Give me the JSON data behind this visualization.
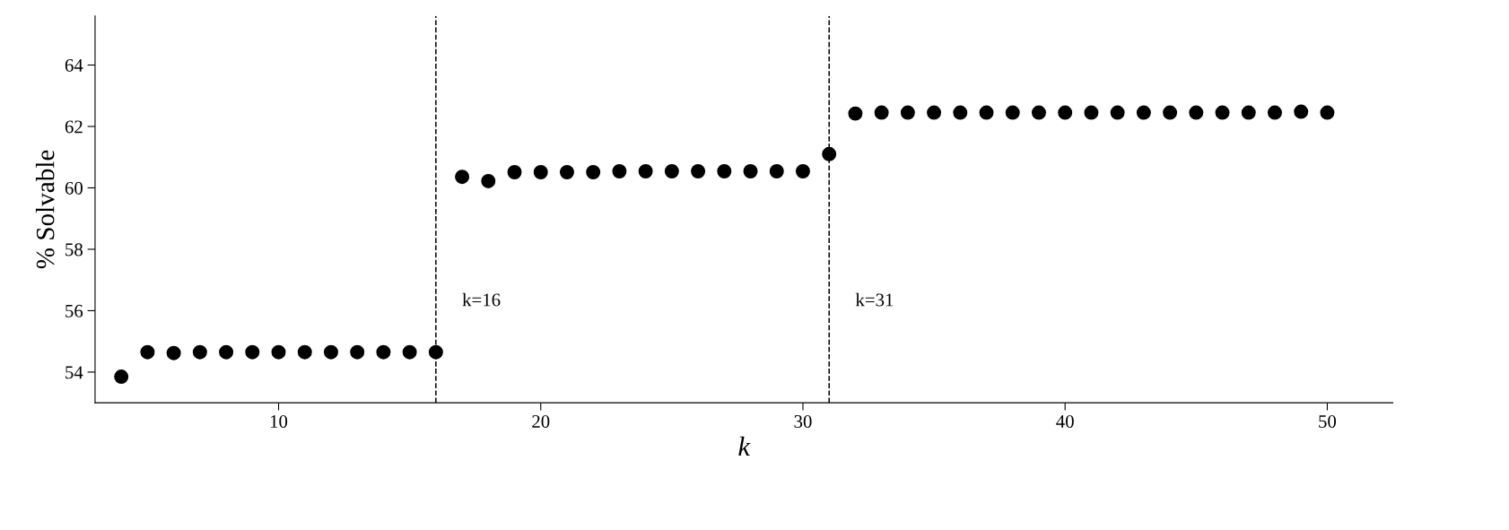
{
  "chart_data": {
    "type": "scatter",
    "xlabel": "k",
    "ylabel": "% Solvable",
    "x": [
      4,
      5,
      6,
      7,
      8,
      9,
      10,
      11,
      12,
      13,
      14,
      15,
      16,
      17,
      18,
      19,
      20,
      21,
      22,
      23,
      24,
      25,
      26,
      27,
      28,
      29,
      30,
      31,
      32,
      33,
      34,
      35,
      36,
      37,
      38,
      39,
      40,
      41,
      42,
      43,
      44,
      45,
      46,
      47,
      48,
      49,
      50
    ],
    "series": [
      {
        "color": "#000000",
        "values": [
          53.85,
          54.65,
          54.62,
          54.65,
          54.65,
          54.65,
          54.65,
          54.65,
          54.65,
          54.65,
          54.65,
          54.65,
          54.65,
          60.36,
          60.22,
          60.51,
          60.51,
          60.51,
          60.51,
          60.54,
          60.54,
          60.54,
          60.54,
          60.54,
          60.54,
          60.54,
          60.54,
          61.1,
          62.42,
          62.45,
          62.45,
          62.45,
          62.45,
          62.45,
          62.45,
          62.45,
          62.45,
          62.45,
          62.45,
          62.45,
          62.45,
          62.45,
          62.45,
          62.45,
          62.45,
          62.48,
          62.45
        ]
      }
    ],
    "marker": "circle",
    "xlim": [
      3,
      52.5
    ],
    "ylim": [
      53,
      65.6
    ],
    "xticks": [
      10,
      20,
      30,
      40,
      50
    ],
    "yticks": [
      54,
      56,
      58,
      60,
      62,
      64
    ],
    "ref_lines": [
      {
        "axis": "x",
        "value": 16,
        "label": "k=16",
        "color": "#000000",
        "line_style": "dashed"
      },
      {
        "axis": "x",
        "value": 31,
        "label": "k=31",
        "color": "#000000",
        "line_style": "dashed"
      }
    ],
    "grid": false,
    "legend": false
  }
}
